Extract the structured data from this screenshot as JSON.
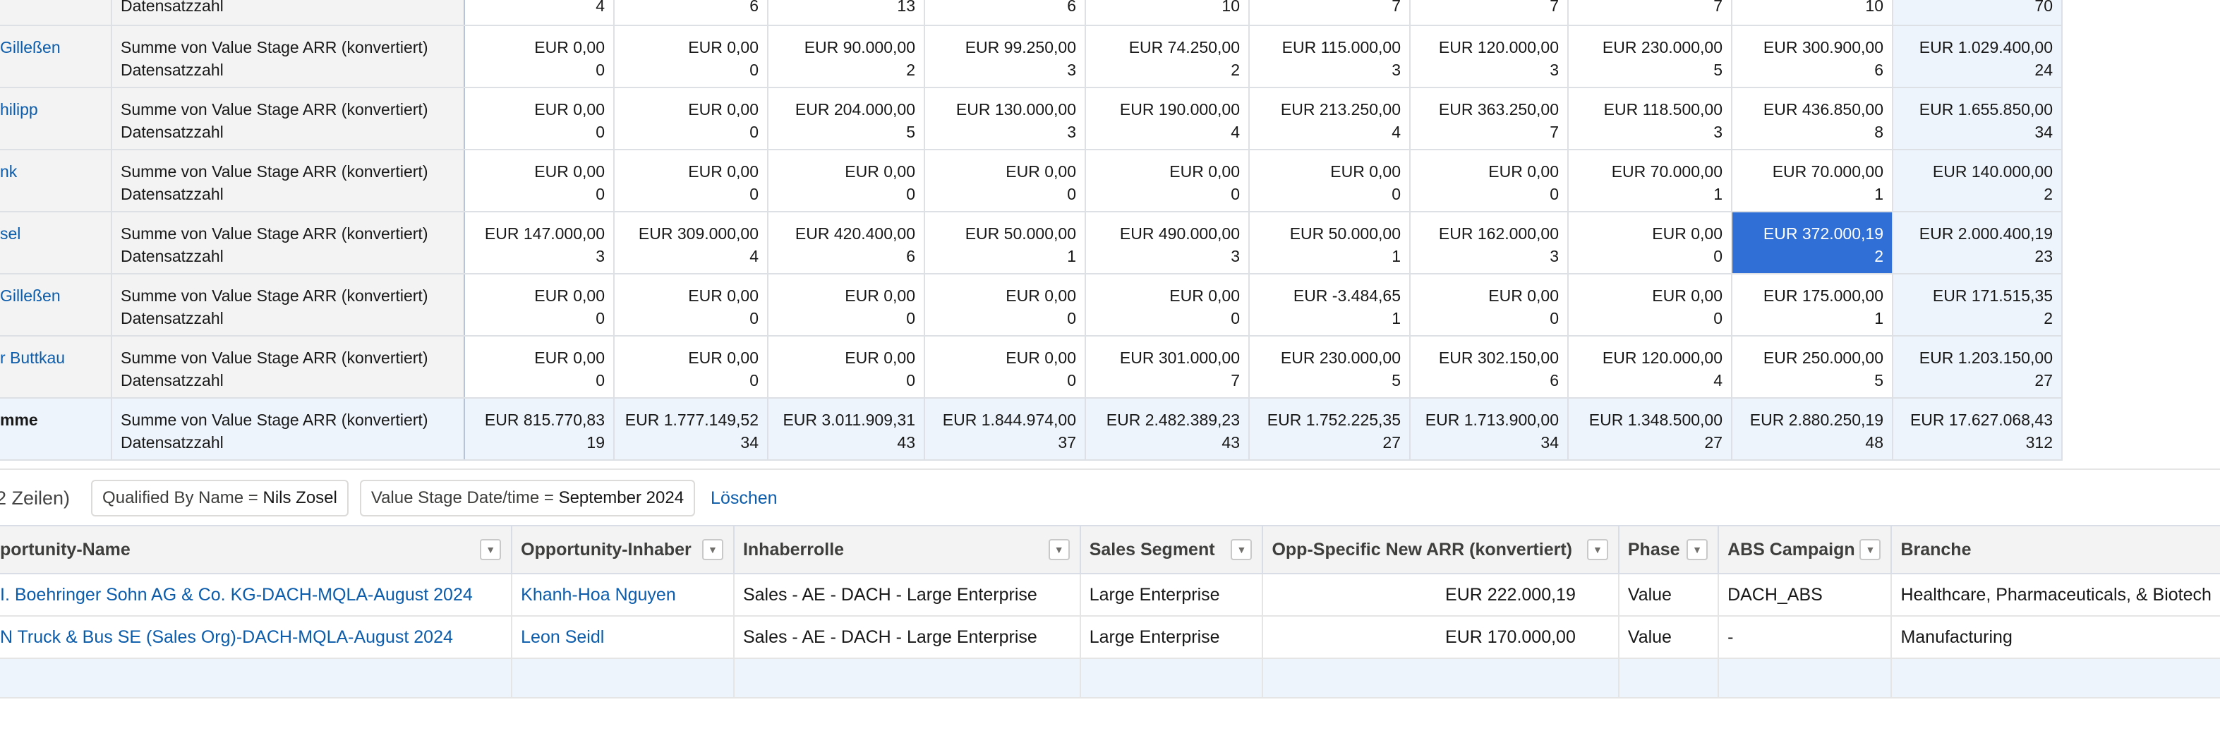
{
  "matrix": {
    "partial_row": {
      "label": "Datensatzzahl",
      "counts": [
        "4",
        "6",
        "13",
        "6",
        "10",
        "7",
        "7",
        "7",
        "10",
        "70"
      ]
    },
    "rows": [
      {
        "name": "Gilleßen",
        "sum_label": "Summe von Value Stage ARR (konvertiert)",
        "count_label": "Datensatzzahl",
        "values": [
          "EUR 0,00",
          "EUR 0,00",
          "EUR 90.000,00",
          "EUR 99.250,00",
          "EUR 74.250,00",
          "EUR 115.000,00",
          "EUR 120.000,00",
          "EUR 230.000,00",
          "EUR 300.900,00",
          "EUR 1.029.400,00"
        ],
        "counts": [
          "0",
          "0",
          "2",
          "3",
          "2",
          "3",
          "3",
          "5",
          "6",
          "24"
        ]
      },
      {
        "name": "hilipp",
        "sum_label": "Summe von Value Stage ARR (konvertiert)",
        "count_label": "Datensatzzahl",
        "values": [
          "EUR 0,00",
          "EUR 0,00",
          "EUR 204.000,00",
          "EUR 130.000,00",
          "EUR 190.000,00",
          "EUR 213.250,00",
          "EUR 363.250,00",
          "EUR 118.500,00",
          "EUR 436.850,00",
          "EUR 1.655.850,00"
        ],
        "counts": [
          "0",
          "0",
          "5",
          "3",
          "4",
          "4",
          "7",
          "3",
          "8",
          "34"
        ]
      },
      {
        "name": "nk",
        "sum_label": "Summe von Value Stage ARR (konvertiert)",
        "count_label": "Datensatzzahl",
        "values": [
          "EUR 0,00",
          "EUR 0,00",
          "EUR 0,00",
          "EUR 0,00",
          "EUR 0,00",
          "EUR 0,00",
          "EUR 0,00",
          "EUR 70.000,00",
          "EUR 70.000,00",
          "EUR 140.000,00"
        ],
        "counts": [
          "0",
          "0",
          "0",
          "0",
          "0",
          "0",
          "0",
          "1",
          "1",
          "2"
        ]
      },
      {
        "name": "sel",
        "sum_label": "Summe von Value Stage ARR (konvertiert)",
        "count_label": "Datensatzzahl",
        "values": [
          "EUR 147.000,00",
          "EUR 309.000,00",
          "EUR 420.400,00",
          "EUR 50.000,00",
          "EUR 490.000,00",
          "EUR 50.000,00",
          "EUR 162.000,00",
          "EUR 0,00",
          "EUR 372.000,19",
          "EUR 2.000.400,19"
        ],
        "counts": [
          "3",
          "4",
          "6",
          "1",
          "3",
          "1",
          "3",
          "0",
          "2",
          "23"
        ]
      },
      {
        "name": "Gilleßen",
        "sum_label": "Summe von Value Stage ARR (konvertiert)",
        "count_label": "Datensatzzahl",
        "values": [
          "EUR 0,00",
          "EUR 0,00",
          "EUR 0,00",
          "EUR 0,00",
          "EUR 0,00",
          "EUR -3.484,65",
          "EUR 0,00",
          "EUR 0,00",
          "EUR 175.000,00",
          "EUR 171.515,35"
        ],
        "counts": [
          "0",
          "0",
          "0",
          "0",
          "0",
          "1",
          "0",
          "0",
          "1",
          "2"
        ]
      },
      {
        "name": "r Buttkau",
        "sum_label": "Summe von Value Stage ARR (konvertiert)",
        "count_label": "Datensatzzahl",
        "values": [
          "EUR 0,00",
          "EUR 0,00",
          "EUR 0,00",
          "EUR 0,00",
          "EUR 301.000,00",
          "EUR 230.000,00",
          "EUR 302.150,00",
          "EUR 120.000,00",
          "EUR 250.000,00",
          "EUR 1.203.150,00"
        ],
        "counts": [
          "0",
          "0",
          "0",
          "0",
          "7",
          "5",
          "6",
          "4",
          "5",
          "27"
        ]
      }
    ],
    "grand_total": {
      "name": "mme",
      "sum_label": "Summe von Value Stage ARR (konvertiert)",
      "count_label": "Datensatzzahl",
      "values": [
        "EUR 815.770,83",
        "EUR 1.777.149,52",
        "EUR 3.011.909,31",
        "EUR 1.844.974,00",
        "EUR 2.482.389,23",
        "EUR 1.752.225,35",
        "EUR 1.713.900,00",
        "EUR 1.348.500,00",
        "EUR 2.880.250,19",
        "EUR 17.627.068,43"
      ],
      "counts": [
        "19",
        "34",
        "43",
        "37",
        "43",
        "27",
        "34",
        "27",
        "48",
        "312"
      ]
    },
    "selected_cell": {
      "row": 3,
      "col": 8
    }
  },
  "filter_bar": {
    "row_count": "2 Zeilen)",
    "filters": [
      {
        "field": "Qualified By Name",
        "op": " = ",
        "value": "Nils Zosel"
      },
      {
        "field": "Value Stage Date/time",
        "op": " = ",
        "value": "September 2024"
      }
    ],
    "clear_label": "Löschen"
  },
  "detail_table": {
    "columns": [
      "portunity-Name",
      "Opportunity-Inhaber",
      "Inhaberrolle",
      "Sales Segment",
      "Opp-Specific New ARR (konvertiert)",
      "Phase",
      "ABS Campaign",
      "Branche"
    ],
    "rows": [
      [
        "I. Boehringer Sohn AG & Co. KG-DACH-MQLA-August 2024",
        "Khanh-Hoa Nguyen",
        "Sales - AE - DACH - Large Enterprise",
        "Large Enterprise",
        "EUR 222.000,19",
        "Value",
        "DACH_ABS",
        "Healthcare, Pharmaceuticals, & Biotech"
      ],
      [
        "N Truck & Bus SE (Sales Org)-DACH-MQLA-August 2024",
        "Leon Seidl",
        "Sales - AE - DACH - Large Enterprise",
        "Large Enterprise",
        "EUR 170.000,00",
        "Value",
        "-",
        "Manufacturing"
      ]
    ]
  },
  "colors": {
    "link": "#0b5cab",
    "selected_cell": "#2f6fd6",
    "header_bg": "#f3f3f3",
    "total_bg": "#eef4fb"
  }
}
